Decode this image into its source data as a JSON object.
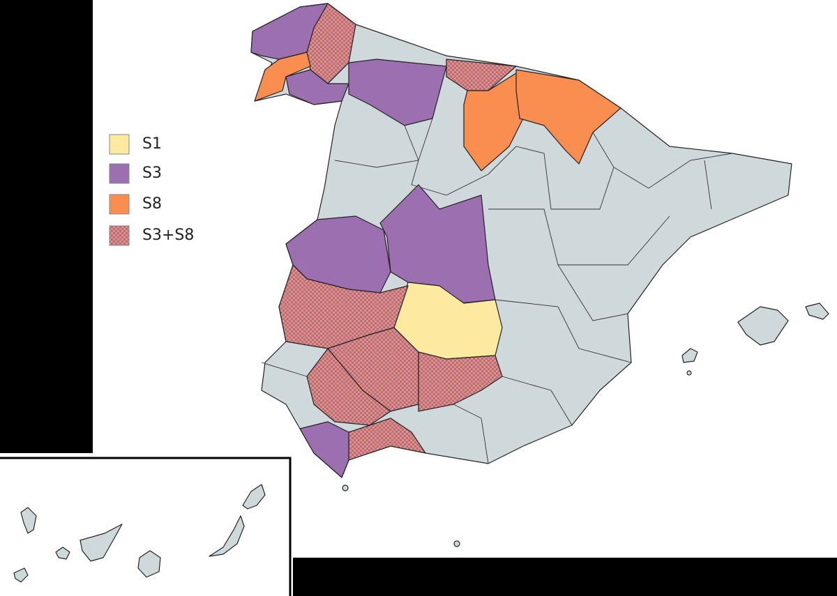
{
  "legend": {
    "items": [
      {
        "label": "S1",
        "color": "#fde9a0"
      },
      {
        "label": "S3",
        "color": "#9b6fb0"
      },
      {
        "label": "S8",
        "color": "#f98e50"
      },
      {
        "label": "S3+S8",
        "pattern": [
          "#9b6fb0",
          "#f98e50"
        ]
      }
    ]
  }
}
